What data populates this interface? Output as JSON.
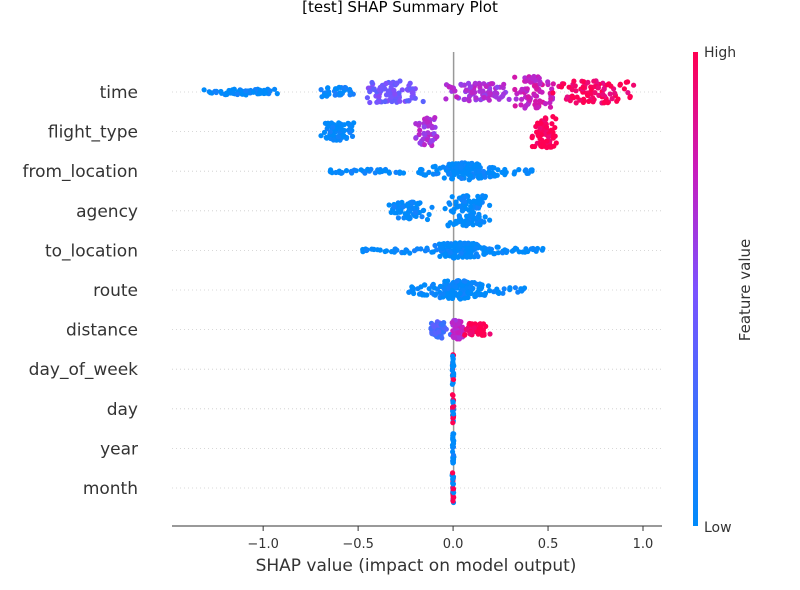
{
  "chart_data": {
    "type": "scatter",
    "title": "[test] SHAP Summary Plot",
    "xlabel": "SHAP value (impact on model output)",
    "xlim": [
      -1.48,
      1.1
    ],
    "xticks": [
      {
        "value": -1.0,
        "label": "−1.0"
      },
      {
        "value": -0.5,
        "label": "−0.5"
      },
      {
        "value": 0.0,
        "label": "0.0"
      },
      {
        "value": 0.5,
        "label": "0.5"
      },
      {
        "value": 1.0,
        "label": "1.0"
      }
    ],
    "colorbar": {
      "label": "Feature value",
      "high": "High",
      "low": "Low",
      "low_color": "#008bfb",
      "high_color": "#ff0052"
    },
    "features": [
      {
        "name": "time",
        "clusters": [
          {
            "lo": -1.37,
            "hi": -0.85,
            "n": 60,
            "spread": 0.18,
            "c": 0.0
          },
          {
            "lo": -0.72,
            "hi": -0.5,
            "n": 35,
            "spread": 0.3,
            "c": 0.05
          },
          {
            "lo": -0.48,
            "hi": -0.15,
            "n": 90,
            "spread": 0.7,
            "c": 0.45
          },
          {
            "lo": -0.05,
            "hi": 0.35,
            "n": 90,
            "spread": 0.55,
            "c": 0.65
          },
          {
            "lo": 0.3,
            "hi": 0.55,
            "n": 80,
            "spread": 1.0,
            "c": 0.75
          },
          {
            "lo": 0.5,
            "hi": 0.98,
            "n": 100,
            "spread": 0.7,
            "c": 0.97
          }
        ]
      },
      {
        "name": "flight_type",
        "clusters": [
          {
            "lo": -0.72,
            "hi": -0.5,
            "n": 70,
            "spread": 0.55,
            "c": 0.0
          },
          {
            "lo": -0.2,
            "hi": -0.08,
            "n": 45,
            "spread": 0.9,
            "c": 0.65
          },
          {
            "lo": 0.4,
            "hi": 0.56,
            "n": 80,
            "spread": 1.0,
            "c": 1.0
          }
        ]
      },
      {
        "name": "from_location",
        "clusters": [
          {
            "lo": -0.65,
            "hi": 0.42,
            "n": 200,
            "spread": 0.55,
            "c": 0.0,
            "peak": 0.05
          }
        ]
      },
      {
        "name": "agency",
        "clusters": [
          {
            "lo": -0.35,
            "hi": -0.1,
            "n": 70,
            "spread": 0.55,
            "c": 0.0
          },
          {
            "lo": -0.05,
            "hi": 0.2,
            "n": 100,
            "spread": 0.95,
            "c": 0.0
          }
        ]
      },
      {
        "name": "to_location",
        "clusters": [
          {
            "lo": -0.48,
            "hi": 0.48,
            "n": 200,
            "spread": 0.5,
            "c": 0.0,
            "peak": 0.03
          }
        ]
      },
      {
        "name": "route",
        "clusters": [
          {
            "lo": -0.25,
            "hi": 0.38,
            "n": 170,
            "spread": 0.6,
            "c": 0.0,
            "peak": 0.02
          }
        ]
      },
      {
        "name": "distance",
        "clusters": [
          {
            "lo": -0.15,
            "hi": 0.0,
            "n": 45,
            "spread": 0.55,
            "c": 0.3
          },
          {
            "lo": -0.02,
            "hi": 0.06,
            "n": 40,
            "spread": 0.6,
            "c": 0.7
          },
          {
            "lo": 0.05,
            "hi": 0.2,
            "n": 55,
            "spread": 0.4,
            "c": 1.0
          }
        ]
      },
      {
        "name": "day_of_week",
        "clusters": [
          {
            "lo": -0.005,
            "hi": 0.005,
            "n": 30,
            "spread": 0.95,
            "c": -1
          }
        ]
      },
      {
        "name": "day",
        "clusters": [
          {
            "lo": -0.005,
            "hi": 0.005,
            "n": 30,
            "spread": 0.95,
            "c": -1
          }
        ]
      },
      {
        "name": "year",
        "clusters": [
          {
            "lo": -0.005,
            "hi": 0.005,
            "n": 30,
            "spread": 0.95,
            "c": 0.0
          }
        ]
      },
      {
        "name": "month",
        "clusters": [
          {
            "lo": -0.005,
            "hi": 0.005,
            "n": 30,
            "spread": 0.95,
            "c": -1
          }
        ]
      }
    ]
  }
}
